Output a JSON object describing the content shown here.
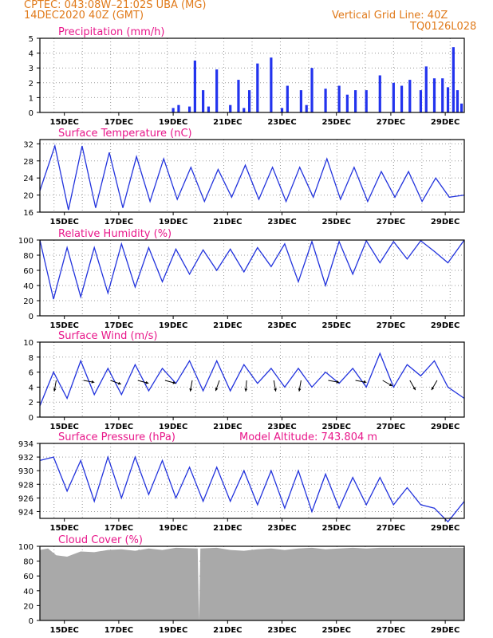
{
  "header": {
    "line1": "CPTEC:   043:08W–21:02S   UBA (MG)",
    "line2": "14DEC2020 40Z (GMT)",
    "right1": "Vertical Grid Line: 40Z",
    "right2": "TQ0126L028"
  },
  "x_tick_labels": [
    "15DEC",
    "17DEC",
    "19DEC",
    "21DEC",
    "23DEC",
    "25DEC",
    "27DEC",
    "29DEC"
  ],
  "colors": {
    "line": "#2233dd",
    "bar": "#2233ee",
    "title": "#e8178a",
    "header": "#e07a1a",
    "cloud": "#a9a9a9"
  },
  "chart_data": [
    {
      "type": "bar",
      "name": "precipitation",
      "title": "Precipitation (mm/h)",
      "x_range_days": [
        0,
        15.6
      ],
      "ylim": [
        0,
        5
      ],
      "yticks": [
        0,
        1,
        2,
        3,
        4,
        5
      ],
      "days": [
        4.9,
        5.1,
        5.5,
        5.7,
        6.0,
        6.2,
        6.5,
        7.0,
        7.3,
        7.5,
        7.7,
        8.0,
        8.5,
        8.9,
        9.1,
        9.6,
        9.8,
        10.0,
        10.5,
        11.0,
        11.3,
        11.6,
        12.0,
        12.5,
        13.0,
        13.3,
        13.6,
        14.0,
        14.2,
        14.5,
        14.8,
        15.0,
        15.2,
        15.35,
        15.5
      ],
      "values": [
        0.3,
        0.5,
        0.4,
        3.5,
        1.5,
        0.4,
        2.9,
        0.5,
        2.2,
        0.3,
        1.5,
        3.3,
        3.7,
        0.3,
        1.8,
        1.5,
        0.5,
        3.0,
        1.6,
        1.8,
        1.2,
        1.5,
        1.5,
        2.5,
        2.0,
        1.8,
        2.2,
        1.5,
        3.1,
        2.3,
        2.3,
        1.7,
        4.4,
        1.5,
        0.6
      ]
    },
    {
      "type": "line",
      "name": "surface_temperature",
      "title": "Surface Temperature (nC)",
      "x_range_days": [
        0,
        15.6
      ],
      "ylim": [
        16,
        33
      ],
      "yticks": [
        16,
        20,
        24,
        28,
        32
      ],
      "days": [
        0,
        0.55,
        1.05,
        1.55,
        2.05,
        2.55,
        3.05,
        3.55,
        4.05,
        4.55,
        5.05,
        5.55,
        6.05,
        6.55,
        7.05,
        7.55,
        8.05,
        8.55,
        9.05,
        9.55,
        10.05,
        10.55,
        11.05,
        11.55,
        12.05,
        12.55,
        13.05,
        13.55,
        14.05,
        14.55,
        15.05,
        15.6
      ],
      "values": [
        21,
        31.5,
        16.5,
        31.5,
        17,
        30,
        17,
        29,
        18.5,
        28.5,
        19,
        26.5,
        18.5,
        26,
        19.5,
        27,
        19,
        26.5,
        18.5,
        26.5,
        19.5,
        28.5,
        19,
        26.5,
        18.5,
        25.5,
        19.5,
        25.5,
        18.5,
        24,
        19.5,
        20
      ]
    },
    {
      "type": "line",
      "name": "relative_humidity",
      "title": "Relative Humidity (%)",
      "x_range_days": [
        0,
        15.6
      ],
      "ylim": [
        0,
        100
      ],
      "yticks": [
        0,
        20,
        40,
        60,
        80,
        100
      ],
      "days": [
        0,
        0.5,
        1.0,
        1.5,
        2.0,
        2.5,
        3.0,
        3.5,
        4.0,
        4.5,
        5.0,
        5.5,
        6.0,
        6.5,
        7.0,
        7.5,
        8.0,
        8.5,
        9.0,
        9.5,
        10.0,
        10.5,
        11.0,
        11.5,
        12.0,
        12.5,
        13.0,
        13.5,
        14.0,
        14.5,
        15.0,
        15.6
      ],
      "values": [
        100,
        22,
        90,
        25,
        90,
        30,
        95,
        38,
        90,
        45,
        88,
        55,
        87,
        60,
        88,
        58,
        90,
        65,
        95,
        45,
        98,
        40,
        98,
        55,
        99,
        70,
        98,
        75,
        99,
        85,
        70,
        100
      ]
    },
    {
      "type": "line",
      "name": "surface_wind",
      "title": "Surface Wind (m/s)",
      "x_range_days": [
        0,
        15.6
      ],
      "ylim": [
        0,
        10
      ],
      "yticks": [
        0,
        2,
        4,
        6,
        8,
        10
      ],
      "days": [
        0,
        0.5,
        1.0,
        1.5,
        2.0,
        2.5,
        3.0,
        3.5,
        4.0,
        4.5,
        5.0,
        5.5,
        6.0,
        6.5,
        7.0,
        7.5,
        8.0,
        8.5,
        9.0,
        9.5,
        10.0,
        10.5,
        11.0,
        11.5,
        12.0,
        12.5,
        13.0,
        13.5,
        14.0,
        14.5,
        15.0,
        15.6
      ],
      "values": [
        1.5,
        6,
        2.5,
        7.5,
        3,
        6.5,
        3,
        7,
        3.5,
        6.5,
        4.5,
        7.5,
        3.5,
        7.5,
        3.5,
        7,
        4.5,
        6.5,
        4,
        6.5,
        4,
        6,
        4.5,
        6.5,
        4,
        8.5,
        4,
        7,
        5.5,
        7.5,
        4,
        2.5
      ],
      "wind_barbs_days": [
        0.6,
        1.6,
        2.6,
        3.6,
        4.6,
        5.6,
        6.6,
        7.6,
        8.6,
        9.6,
        10.6,
        11.6,
        12.6,
        13.6,
        14.6
      ],
      "wind_dirs_deg": [
        350,
        80,
        70,
        75,
        75,
        350,
        340,
        355,
        10,
        350,
        80,
        80,
        60,
        30,
        330
      ]
    },
    {
      "type": "line",
      "name": "surface_pressure",
      "title": "Surface Pressure (hPa)",
      "annotation": "Model Altitude: 743.804 m",
      "x_range_days": [
        0,
        15.6
      ],
      "ylim": [
        923,
        934
      ],
      "yticks": [
        924,
        926,
        928,
        930,
        932,
        934
      ],
      "days": [
        0,
        0.5,
        1.0,
        1.5,
        2.0,
        2.5,
        3.0,
        3.5,
        4.0,
        4.5,
        5.0,
        5.5,
        6.0,
        6.5,
        7.0,
        7.5,
        8.0,
        8.5,
        9.0,
        9.5,
        10.0,
        10.5,
        11.0,
        11.5,
        12.0,
        12.5,
        13.0,
        13.5,
        14.0,
        14.5,
        15.0,
        15.6
      ],
      "values": [
        931.5,
        932,
        927,
        931.5,
        925.5,
        932,
        926,
        932,
        926.5,
        931.5,
        926,
        930.5,
        925.5,
        930.5,
        925.5,
        930,
        925,
        930,
        924.5,
        930,
        924,
        929.5,
        924.5,
        929,
        925,
        929,
        925,
        927.5,
        925,
        924.5,
        922.5,
        925.5
      ]
    },
    {
      "type": "area",
      "name": "cloud_cover",
      "title": "Cloud Cover (%)",
      "x_range_days": [
        0,
        15.6
      ],
      "ylim": [
        0,
        100
      ],
      "yticks": [
        0,
        20,
        40,
        60,
        80,
        100
      ],
      "days": [
        0,
        0.3,
        0.6,
        1.0,
        1.5,
        2.0,
        2.5,
        3.0,
        3.5,
        4.0,
        4.5,
        5.0,
        5.8,
        5.85,
        5.9,
        6.5,
        7.0,
        7.5,
        8.0,
        8.5,
        9.0,
        9.5,
        10.0,
        10.5,
        11.0,
        11.5,
        12.0,
        12.5,
        13.0,
        13.5,
        14.0,
        14.5,
        15.0,
        15.6
      ],
      "values": [
        95,
        97,
        88,
        86,
        93,
        92,
        95,
        96,
        94,
        97,
        95,
        98,
        97,
        0,
        97,
        98,
        95,
        94,
        96,
        97,
        95,
        97,
        98,
        96,
        97,
        98,
        97,
        98,
        98,
        98,
        98,
        98,
        98,
        98
      ]
    }
  ]
}
